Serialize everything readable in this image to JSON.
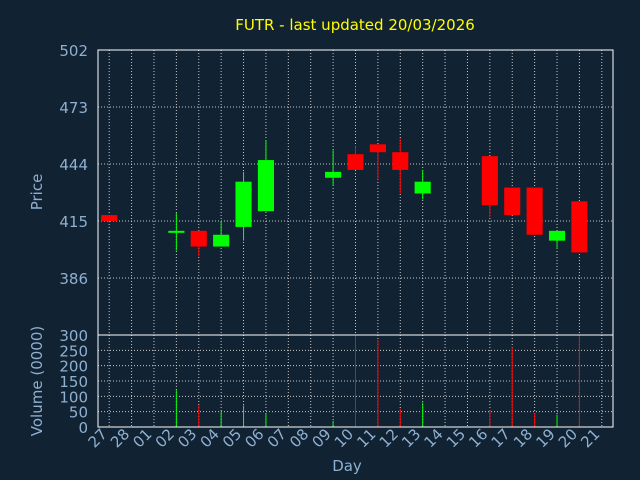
{
  "colors": {
    "background": "#112233",
    "plot_border": "#ffffff",
    "grid": "#c8c8c8",
    "title": "#ffff00",
    "axis_text": "#8fb0d0",
    "up": "#00ff00",
    "down": "#ff0000"
  },
  "chart_data": {
    "type": "candlestick",
    "title": "FUTR - last updated 20/03/2026",
    "xlabel": "Day",
    "ylabel_price": "Price",
    "ylabel_volume": "Volume (0000)",
    "price_ylim": [
      357,
      502
    ],
    "price_ticks": [
      "502",
      "473",
      "444",
      "415",
      "386"
    ],
    "volume_ylim": [
      0,
      300
    ],
    "volume_ticks": [
      "300",
      "250",
      "200",
      "150",
      "100",
      "50",
      "0"
    ],
    "grid": true,
    "x_labels": [
      "27",
      "28",
      "01",
      "02",
      "03",
      "04",
      "05",
      "06",
      "07",
      "08",
      "09",
      "10",
      "11",
      "12",
      "13",
      "14",
      "15",
      "16",
      "17",
      "18",
      "19",
      "20",
      "21"
    ],
    "candles": [
      {
        "day": "27",
        "open": 418,
        "close": 415,
        "high": 418,
        "low": 415,
        "volume": 0
      },
      {
        "day": "02",
        "open": 410,
        "close": 410,
        "high": 419,
        "low": 400,
        "volume": 120
      },
      {
        "day": "03",
        "open": 410,
        "close": 402,
        "high": 410,
        "low": 397,
        "volume": 70
      },
      {
        "day": "04",
        "open": 402,
        "close": 408,
        "high": 415,
        "low": 402,
        "volume": 50
      },
      {
        "day": "05",
        "open": 412,
        "close": 435,
        "high": 440,
        "low": 405,
        "volume": 70
      },
      {
        "day": "06",
        "open": 420,
        "close": 446,
        "high": 456,
        "low": 420,
        "volume": 45
      },
      {
        "day": "09",
        "open": 437,
        "close": 440,
        "high": 451,
        "low": 433,
        "volume": 20
      },
      {
        "day": "10",
        "open": 449,
        "close": 441,
        "high": 453,
        "low": 441,
        "volume": 300
      },
      {
        "day": "11",
        "open": 454,
        "close": 450,
        "high": 454,
        "low": 436,
        "volume": 285
      },
      {
        "day": "12",
        "open": 450,
        "close": 441,
        "high": 457,
        "low": 429,
        "volume": 60
      },
      {
        "day": "13",
        "open": 429,
        "close": 435,
        "high": 441,
        "low": 426,
        "volume": 80
      },
      {
        "day": "16",
        "open": 448,
        "close": 423,
        "high": 448,
        "low": 417,
        "volume": 55
      },
      {
        "day": "17",
        "open": 432,
        "close": 418,
        "high": 432,
        "low": 418,
        "volume": 260
      },
      {
        "day": "18",
        "open": 432,
        "close": 408,
        "high": 432,
        "low": 408,
        "volume": 45
      },
      {
        "day": "19",
        "open": 405,
        "close": 410,
        "high": 410,
        "low": 401,
        "volume": 40
      },
      {
        "day": "20",
        "open": 425,
        "close": 399,
        "high": 425,
        "low": 399,
        "volume": 300
      }
    ]
  }
}
